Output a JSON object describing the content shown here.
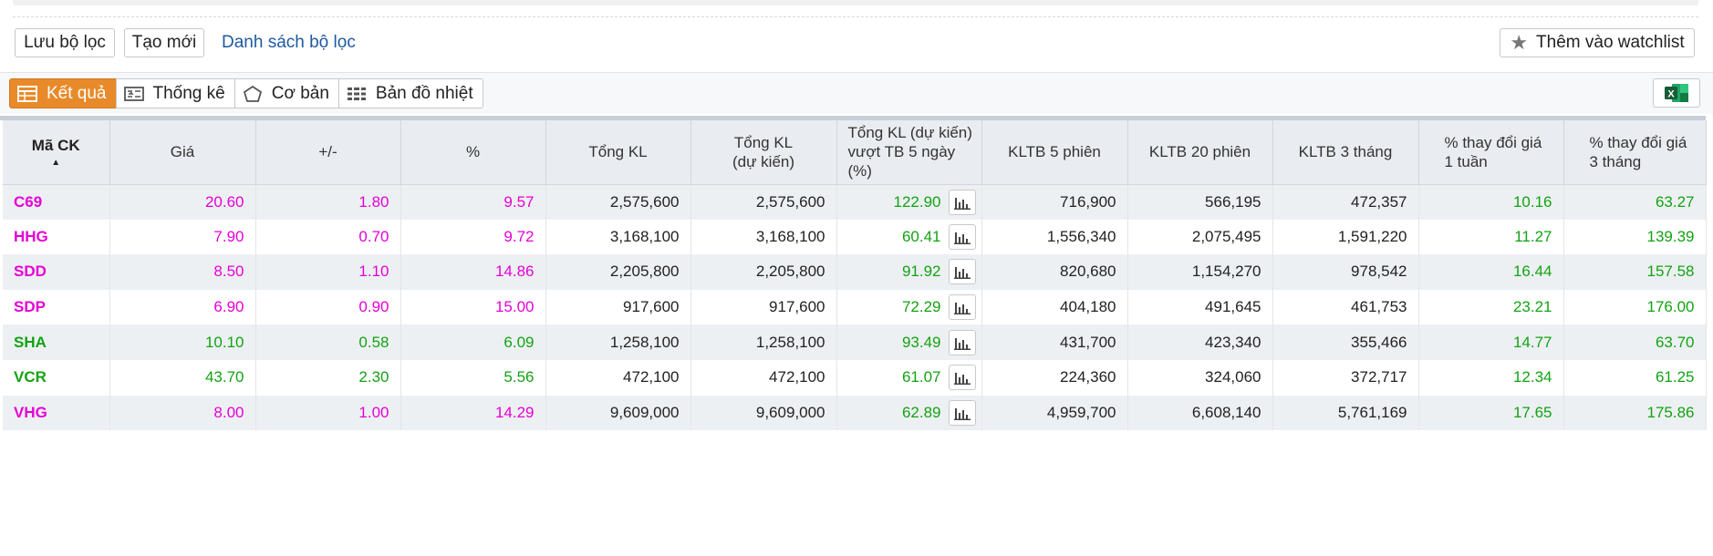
{
  "filter_bar": {
    "save_label": "Lưu bộ lọc",
    "new_label": "Tạo mới",
    "list_link": "Danh sách bộ lọc",
    "watchlist_label": "Thêm vào watchlist"
  },
  "tabs": [
    {
      "label": "Kết quả",
      "icon": "table-icon",
      "active": true
    },
    {
      "label": "Thống kê",
      "icon": "stats-icon",
      "active": false
    },
    {
      "label": "Cơ bản",
      "icon": "pentagon-icon",
      "active": false
    },
    {
      "label": "Bản đồ nhiệt",
      "icon": "heatmap-icon",
      "active": false
    }
  ],
  "colors": {
    "up": "#e600d6",
    "ceiling": "#e600d6",
    "positive": "#13a313",
    "accent": "#e88a2a"
  },
  "table": {
    "headers": {
      "symbol": "Mã CK",
      "price": "Giá",
      "change": "+/-",
      "pct": "%",
      "total_vol": "Tổng KL",
      "total_vol_est_1": "Tổng KL",
      "total_vol_est_2": "(dự kiến)",
      "ratio_1": "Tổng KL (dự kiến)",
      "ratio_2": "vượt TB 5 ngày",
      "ratio_3": "(%)",
      "avg5": "KLTB 5 phiên",
      "avg20": "KLTB 20 phiên",
      "avg3m": "KLTB 3 tháng",
      "chg1w_1": "% thay đổi giá",
      "chg1w_2": "1 tuần",
      "chg3m_1": "% thay đổi giá",
      "chg3m_2": "3 tháng"
    },
    "rows": [
      {
        "symbol": "C69",
        "price": "20.60",
        "change": "1.80",
        "pct": "9.57",
        "total_vol": "2,575,600",
        "total_vol_est": "2,575,600",
        "ratio": "122.90",
        "avg5": "716,900",
        "avg20": "566,195",
        "avg3m": "472,357",
        "chg1w": "10.16",
        "chg3m": "63.27",
        "color": "mag"
      },
      {
        "symbol": "HHG",
        "price": "7.90",
        "change": "0.70",
        "pct": "9.72",
        "total_vol": "3,168,100",
        "total_vol_est": "3,168,100",
        "ratio": "60.41",
        "avg5": "1,556,340",
        "avg20": "2,075,495",
        "avg3m": "1,591,220",
        "chg1w": "11.27",
        "chg3m": "139.39",
        "color": "mag"
      },
      {
        "symbol": "SDD",
        "price": "8.50",
        "change": "1.10",
        "pct": "14.86",
        "total_vol": "2,205,800",
        "total_vol_est": "2,205,800",
        "ratio": "91.92",
        "avg5": "820,680",
        "avg20": "1,154,270",
        "avg3m": "978,542",
        "chg1w": "16.44",
        "chg3m": "157.58",
        "color": "mag"
      },
      {
        "symbol": "SDP",
        "price": "6.90",
        "change": "0.90",
        "pct": "15.00",
        "total_vol": "917,600",
        "total_vol_est": "917,600",
        "ratio": "72.29",
        "avg5": "404,180",
        "avg20": "491,645",
        "avg3m": "461,753",
        "chg1w": "23.21",
        "chg3m": "176.00",
        "color": "mag"
      },
      {
        "symbol": "SHA",
        "price": "10.10",
        "change": "0.58",
        "pct": "6.09",
        "total_vol": "1,258,100",
        "total_vol_est": "1,258,100",
        "ratio": "93.49",
        "avg5": "431,700",
        "avg20": "423,340",
        "avg3m": "355,466",
        "chg1w": "14.77",
        "chg3m": "63.70",
        "color": "grn"
      },
      {
        "symbol": "VCR",
        "price": "43.70",
        "change": "2.30",
        "pct": "5.56",
        "total_vol": "472,100",
        "total_vol_est": "472,100",
        "ratio": "61.07",
        "avg5": "224,360",
        "avg20": "324,060",
        "avg3m": "372,717",
        "chg1w": "12.34",
        "chg3m": "61.25",
        "color": "grn"
      },
      {
        "symbol": "VHG",
        "price": "8.00",
        "change": "1.00",
        "pct": "14.29",
        "total_vol": "9,609,000",
        "total_vol_est": "9,609,000",
        "ratio": "62.89",
        "avg5": "4,959,700",
        "avg20": "6,608,140",
        "avg3m": "5,761,169",
        "chg1w": "17.65",
        "chg3m": "175.86",
        "color": "mag"
      }
    ]
  }
}
